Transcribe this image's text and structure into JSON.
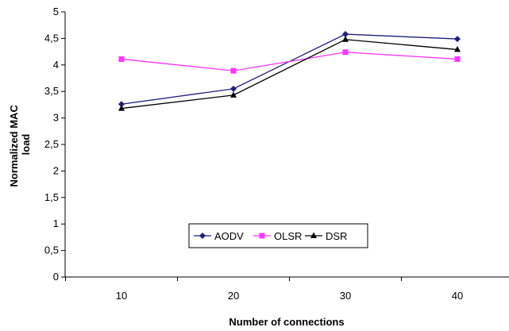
{
  "chart_data": {
    "type": "line",
    "title": "",
    "xlabel": "Number of connections",
    "ylabel": "Normalized MAC load",
    "ylabel_lines": [
      "Normalized MAC",
      "load"
    ],
    "categories": [
      "10",
      "20",
      "30",
      "40"
    ],
    "ylim": [
      0,
      5
    ],
    "ytick_labels": [
      "0",
      "0,5",
      "1",
      "1,5",
      "2",
      "2,5",
      "3",
      "3,5",
      "4",
      "4,5",
      "5"
    ],
    "grid": false,
    "legend_position": "bottom-center",
    "series": [
      {
        "name": "AODV",
        "color": "#1f1f7a",
        "marker": "diamond",
        "values": [
          3.26,
          3.55,
          4.58,
          4.49
        ]
      },
      {
        "name": "OLSR",
        "color": "#ff33ff",
        "marker": "square",
        "values": [
          4.11,
          3.89,
          4.24,
          4.11
        ]
      },
      {
        "name": "DSR",
        "color": "#000000",
        "marker": "triangle",
        "values": [
          3.18,
          3.43,
          4.48,
          4.29
        ]
      }
    ]
  }
}
